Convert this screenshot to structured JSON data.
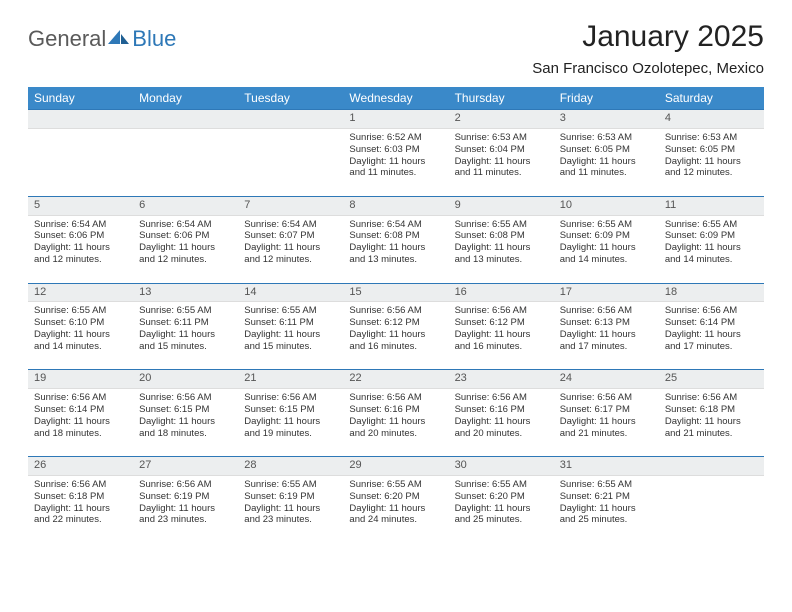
{
  "brand": {
    "part1": "General",
    "part2": "Blue"
  },
  "title": "January 2025",
  "location": "San Francisco Ozolotepec, Mexico",
  "colors": {
    "header_bg": "#3a89c9",
    "header_text": "#ffffff",
    "daynum_bg": "#eceeef",
    "rule": "#2e78b7",
    "logo_gray": "#5a5a5a",
    "logo_blue": "#2e78b7"
  },
  "weekdays": [
    "Sunday",
    "Monday",
    "Tuesday",
    "Wednesday",
    "Thursday",
    "Friday",
    "Saturday"
  ],
  "weeks": [
    {
      "nums": [
        "",
        "",
        "",
        "1",
        "2",
        "3",
        "4"
      ],
      "cells": [
        {
          "sunrise": "",
          "sunset": "",
          "daylight1": "",
          "daylight2": ""
        },
        {
          "sunrise": "",
          "sunset": "",
          "daylight1": "",
          "daylight2": ""
        },
        {
          "sunrise": "",
          "sunset": "",
          "daylight1": "",
          "daylight2": ""
        },
        {
          "sunrise": "Sunrise: 6:52 AM",
          "sunset": "Sunset: 6:03 PM",
          "daylight1": "Daylight: 11 hours",
          "daylight2": "and 11 minutes."
        },
        {
          "sunrise": "Sunrise: 6:53 AM",
          "sunset": "Sunset: 6:04 PM",
          "daylight1": "Daylight: 11 hours",
          "daylight2": "and 11 minutes."
        },
        {
          "sunrise": "Sunrise: 6:53 AM",
          "sunset": "Sunset: 6:05 PM",
          "daylight1": "Daylight: 11 hours",
          "daylight2": "and 11 minutes."
        },
        {
          "sunrise": "Sunrise: 6:53 AM",
          "sunset": "Sunset: 6:05 PM",
          "daylight1": "Daylight: 11 hours",
          "daylight2": "and 12 minutes."
        }
      ]
    },
    {
      "nums": [
        "5",
        "6",
        "7",
        "8",
        "9",
        "10",
        "11"
      ],
      "cells": [
        {
          "sunrise": "Sunrise: 6:54 AM",
          "sunset": "Sunset: 6:06 PM",
          "daylight1": "Daylight: 11 hours",
          "daylight2": "and 12 minutes."
        },
        {
          "sunrise": "Sunrise: 6:54 AM",
          "sunset": "Sunset: 6:06 PM",
          "daylight1": "Daylight: 11 hours",
          "daylight2": "and 12 minutes."
        },
        {
          "sunrise": "Sunrise: 6:54 AM",
          "sunset": "Sunset: 6:07 PM",
          "daylight1": "Daylight: 11 hours",
          "daylight2": "and 12 minutes."
        },
        {
          "sunrise": "Sunrise: 6:54 AM",
          "sunset": "Sunset: 6:08 PM",
          "daylight1": "Daylight: 11 hours",
          "daylight2": "and 13 minutes."
        },
        {
          "sunrise": "Sunrise: 6:55 AM",
          "sunset": "Sunset: 6:08 PM",
          "daylight1": "Daylight: 11 hours",
          "daylight2": "and 13 minutes."
        },
        {
          "sunrise": "Sunrise: 6:55 AM",
          "sunset": "Sunset: 6:09 PM",
          "daylight1": "Daylight: 11 hours",
          "daylight2": "and 14 minutes."
        },
        {
          "sunrise": "Sunrise: 6:55 AM",
          "sunset": "Sunset: 6:09 PM",
          "daylight1": "Daylight: 11 hours",
          "daylight2": "and 14 minutes."
        }
      ]
    },
    {
      "nums": [
        "12",
        "13",
        "14",
        "15",
        "16",
        "17",
        "18"
      ],
      "cells": [
        {
          "sunrise": "Sunrise: 6:55 AM",
          "sunset": "Sunset: 6:10 PM",
          "daylight1": "Daylight: 11 hours",
          "daylight2": "and 14 minutes."
        },
        {
          "sunrise": "Sunrise: 6:55 AM",
          "sunset": "Sunset: 6:11 PM",
          "daylight1": "Daylight: 11 hours",
          "daylight2": "and 15 minutes."
        },
        {
          "sunrise": "Sunrise: 6:55 AM",
          "sunset": "Sunset: 6:11 PM",
          "daylight1": "Daylight: 11 hours",
          "daylight2": "and 15 minutes."
        },
        {
          "sunrise": "Sunrise: 6:56 AM",
          "sunset": "Sunset: 6:12 PM",
          "daylight1": "Daylight: 11 hours",
          "daylight2": "and 16 minutes."
        },
        {
          "sunrise": "Sunrise: 6:56 AM",
          "sunset": "Sunset: 6:12 PM",
          "daylight1": "Daylight: 11 hours",
          "daylight2": "and 16 minutes."
        },
        {
          "sunrise": "Sunrise: 6:56 AM",
          "sunset": "Sunset: 6:13 PM",
          "daylight1": "Daylight: 11 hours",
          "daylight2": "and 17 minutes."
        },
        {
          "sunrise": "Sunrise: 6:56 AM",
          "sunset": "Sunset: 6:14 PM",
          "daylight1": "Daylight: 11 hours",
          "daylight2": "and 17 minutes."
        }
      ]
    },
    {
      "nums": [
        "19",
        "20",
        "21",
        "22",
        "23",
        "24",
        "25"
      ],
      "cells": [
        {
          "sunrise": "Sunrise: 6:56 AM",
          "sunset": "Sunset: 6:14 PM",
          "daylight1": "Daylight: 11 hours",
          "daylight2": "and 18 minutes."
        },
        {
          "sunrise": "Sunrise: 6:56 AM",
          "sunset": "Sunset: 6:15 PM",
          "daylight1": "Daylight: 11 hours",
          "daylight2": "and 18 minutes."
        },
        {
          "sunrise": "Sunrise: 6:56 AM",
          "sunset": "Sunset: 6:15 PM",
          "daylight1": "Daylight: 11 hours",
          "daylight2": "and 19 minutes."
        },
        {
          "sunrise": "Sunrise: 6:56 AM",
          "sunset": "Sunset: 6:16 PM",
          "daylight1": "Daylight: 11 hours",
          "daylight2": "and 20 minutes."
        },
        {
          "sunrise": "Sunrise: 6:56 AM",
          "sunset": "Sunset: 6:16 PM",
          "daylight1": "Daylight: 11 hours",
          "daylight2": "and 20 minutes."
        },
        {
          "sunrise": "Sunrise: 6:56 AM",
          "sunset": "Sunset: 6:17 PM",
          "daylight1": "Daylight: 11 hours",
          "daylight2": "and 21 minutes."
        },
        {
          "sunrise": "Sunrise: 6:56 AM",
          "sunset": "Sunset: 6:18 PM",
          "daylight1": "Daylight: 11 hours",
          "daylight2": "and 21 minutes."
        }
      ]
    },
    {
      "nums": [
        "26",
        "27",
        "28",
        "29",
        "30",
        "31",
        ""
      ],
      "cells": [
        {
          "sunrise": "Sunrise: 6:56 AM",
          "sunset": "Sunset: 6:18 PM",
          "daylight1": "Daylight: 11 hours",
          "daylight2": "and 22 minutes."
        },
        {
          "sunrise": "Sunrise: 6:56 AM",
          "sunset": "Sunset: 6:19 PM",
          "daylight1": "Daylight: 11 hours",
          "daylight2": "and 23 minutes."
        },
        {
          "sunrise": "Sunrise: 6:55 AM",
          "sunset": "Sunset: 6:19 PM",
          "daylight1": "Daylight: 11 hours",
          "daylight2": "and 23 minutes."
        },
        {
          "sunrise": "Sunrise: 6:55 AM",
          "sunset": "Sunset: 6:20 PM",
          "daylight1": "Daylight: 11 hours",
          "daylight2": "and 24 minutes."
        },
        {
          "sunrise": "Sunrise: 6:55 AM",
          "sunset": "Sunset: 6:20 PM",
          "daylight1": "Daylight: 11 hours",
          "daylight2": "and 25 minutes."
        },
        {
          "sunrise": "Sunrise: 6:55 AM",
          "sunset": "Sunset: 6:21 PM",
          "daylight1": "Daylight: 11 hours",
          "daylight2": "and 25 minutes."
        },
        {
          "sunrise": "",
          "sunset": "",
          "daylight1": "",
          "daylight2": ""
        }
      ]
    }
  ]
}
